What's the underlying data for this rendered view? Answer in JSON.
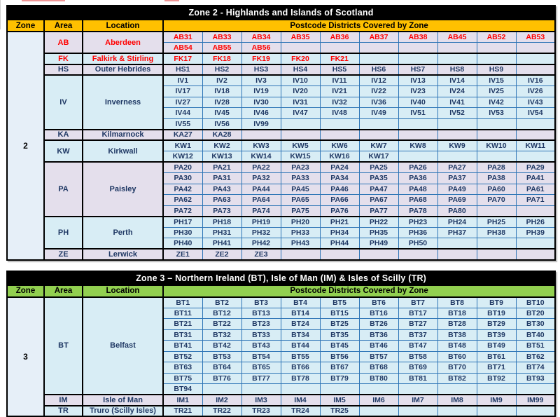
{
  "colors": {
    "title_bar_bg": "#000000",
    "title_bar_text": "#ffffff",
    "zone2_header_bg": "#FFC000",
    "zone3_header_bg": "#92D050",
    "lavender_row": "#E4DFEC",
    "blue_row": "#D8EDF5",
    "zone_column_bg": "#E6EFF8",
    "grid_border_blue": "#2E75B6",
    "postcode_text": "#1F3864",
    "highlight_text": "#FF0000"
  },
  "tables": [
    {
      "title": "Zone 2 - Highlands and Islands of Scotland",
      "zone": "2",
      "header_bg": "#FFC000",
      "header": {
        "zone": "Zone",
        "area": "Area",
        "location": "Location",
        "postcodes": "Postcode Districts Covered by Zone"
      },
      "groups": [
        {
          "area": "AB",
          "location": "Aberdeen",
          "bg": "lav",
          "text": "red",
          "rows": [
            [
              "AB31",
              "AB33",
              "AB34",
              "AB35",
              "AB36",
              "AB37",
              "AB38",
              "AB45",
              "AB52",
              "AB53"
            ],
            [
              "AB54",
              "AB55",
              "AB56"
            ]
          ]
        },
        {
          "area": "FK",
          "location": "Falkirk & Stirling",
          "bg": "blu",
          "text": "red",
          "rows": [
            [
              "FK17",
              "FK18",
              "FK19",
              "FK20",
              "FK21"
            ]
          ]
        },
        {
          "area": "HS",
          "location": "Outer Hebrides",
          "bg": "lav",
          "text": "navy",
          "rows": [
            [
              "HS1",
              "HS2",
              "HS3",
              "HS4",
              "HS5",
              "HS6",
              "HS7",
              "HS8",
              "HS9"
            ]
          ]
        },
        {
          "area": "IV",
          "location": "Inverness",
          "bg": "blu",
          "text": "navy",
          "rows": [
            [
              "IV1",
              "IV2",
              "IV3",
              "IV10",
              "IV11",
              "IV12",
              "IV13",
              "IV14",
              "IV15",
              "IV16"
            ],
            [
              "IV17",
              "IV18",
              "IV19",
              "IV20",
              "IV21",
              "IV22",
              "IV23",
              "IV24",
              "IV25",
              "IV26"
            ],
            [
              "IV27",
              "IV28",
              "IV30",
              "IV31",
              "IV32",
              "IV36",
              "IV40",
              "IV41",
              "IV42",
              "IV43"
            ],
            [
              "IV44",
              "IV45",
              "IV46",
              "IV47",
              "IV48",
              "IV49",
              "IV51",
              "IV52",
              "IV53",
              "IV54"
            ],
            [
              "IV55",
              "IV56",
              "IV99"
            ]
          ]
        },
        {
          "area": "KA",
          "location": "Kilmarnock",
          "bg": "lav",
          "text": "navy",
          "rows": [
            [
              "KA27",
              "KA28"
            ]
          ]
        },
        {
          "area": "KW",
          "location": "Kirkwall",
          "bg": "blu",
          "text": "navy",
          "rows": [
            [
              "KW1",
              "KW2",
              "KW3",
              "KW5",
              "KW6",
              "KW7",
              "KW8",
              "KW9",
              "KW10",
              "KW11"
            ],
            [
              "KW12",
              "KW13",
              "KW14",
              "KW15",
              "KW16",
              "KW17"
            ]
          ]
        },
        {
          "area": "PA",
          "location": "Paisley",
          "bg": "lav",
          "text": "navy",
          "rows": [
            [
              "PA20",
              "PA21",
              "PA22",
              "PA23",
              "PA24",
              "PA25",
              "PA26",
              "PA27",
              "PA28",
              "PA29"
            ],
            [
              "PA30",
              "PA31",
              "PA32",
              "PA33",
              "PA34",
              "PA35",
              "PA36",
              "PA37",
              "PA38",
              "PA41"
            ],
            [
              "PA42",
              "PA43",
              "PA44",
              "PA45",
              "PA46",
              "PA47",
              "PA48",
              "PA49",
              "PA60",
              "PA61"
            ],
            [
              "PA62",
              "PA63",
              "PA64",
              "PA65",
              "PA66",
              "PA67",
              "PA68",
              "PA69",
              "PA70",
              "PA71"
            ],
            [
              "PA72",
              "PA73",
              "PA74",
              "PA75",
              "PA76",
              "PA77",
              "PA78",
              "PA80"
            ]
          ]
        },
        {
          "area": "PH",
          "location": "Perth",
          "bg": "blu",
          "text": "navy",
          "rows": [
            [
              "PH17",
              "PH18",
              "PH19",
              "PH20",
              "PH21",
              "PH22",
              "PH23",
              "PH24",
              "PH25",
              "PH26"
            ],
            [
              "PH30",
              "PH31",
              "PH32",
              "PH33",
              "PH34",
              "PH35",
              "PH36",
              "PH37",
              "PH38",
              "PH39"
            ],
            [
              "PH40",
              "PH41",
              "PH42",
              "PH43",
              "PH44",
              "PH49",
              "PH50"
            ]
          ]
        },
        {
          "area": "ZE",
          "location": "Lerwick",
          "bg": "lav",
          "text": "navy",
          "rows": [
            [
              "ZE1",
              "ZE2",
              "ZE3"
            ]
          ]
        }
      ]
    },
    {
      "title": "Zone 3 – Northern Ireland (BT), Isle of Man (IM) & Isles of Scilly (TR)",
      "zone": "3",
      "header_bg": "#92D050",
      "header": {
        "zone": "Zone",
        "area": "Area",
        "location": "Location",
        "postcodes": "Postcode Districts Covered by Zone"
      },
      "groups": [
        {
          "area": "BT",
          "location": "Belfast",
          "bg": "blu",
          "text": "navy",
          "rows": [
            [
              "BT1",
              "BT2",
              "BT3",
              "BT4",
              "BT5",
              "BT6",
              "BT7",
              "BT8",
              "BT9",
              "BT10"
            ],
            [
              "BT11",
              "BT12",
              "BT13",
              "BT14",
              "BT15",
              "BT16",
              "BT17",
              "BT18",
              "BT19",
              "BT20"
            ],
            [
              "BT21",
              "BT22",
              "BT23",
              "BT24",
              "BT25",
              "BT26",
              "BT27",
              "BT28",
              "BT29",
              "BT30"
            ],
            [
              "BT31",
              "BT32",
              "BT33",
              "BT34",
              "BT35",
              "BT36",
              "BT37",
              "BT38",
              "BT39",
              "BT40"
            ],
            [
              "BT41",
              "BT42",
              "BT43",
              "BT44",
              "BT45",
              "BT46",
              "BT47",
              "BT48",
              "BT49",
              "BT51"
            ],
            [
              "BT52",
              "BT53",
              "BT54",
              "BT55",
              "BT56",
              "BT57",
              "BT58",
              "BT60",
              "BT61",
              "BT62"
            ],
            [
              "BT63",
              "BT64",
              "BT65",
              "BT66",
              "BT67",
              "BT68",
              "BT69",
              "BT70",
              "BT71",
              "BT74"
            ],
            [
              "BT75",
              "BT76",
              "BT77",
              "BT78",
              "BT79",
              "BT80",
              "BT81",
              "BT82",
              "BT92",
              "BT93"
            ],
            [
              "BT94"
            ]
          ]
        },
        {
          "area": "IM",
          "location": "Isle of Man",
          "bg": "lav",
          "text": "navy",
          "rows": [
            [
              "IM1",
              "IM2",
              "IM3",
              "IM4",
              "IM5",
              "IM6",
              "IM7",
              "IM8",
              "IM9",
              "IM99"
            ]
          ]
        },
        {
          "area": "TR",
          "location": "Truro (Scilly Isles)",
          "bg": "blu",
          "text": "navy",
          "rows": [
            [
              "TR21",
              "TR22",
              "TR23",
              "TR24",
              "TR25"
            ]
          ]
        }
      ]
    }
  ]
}
